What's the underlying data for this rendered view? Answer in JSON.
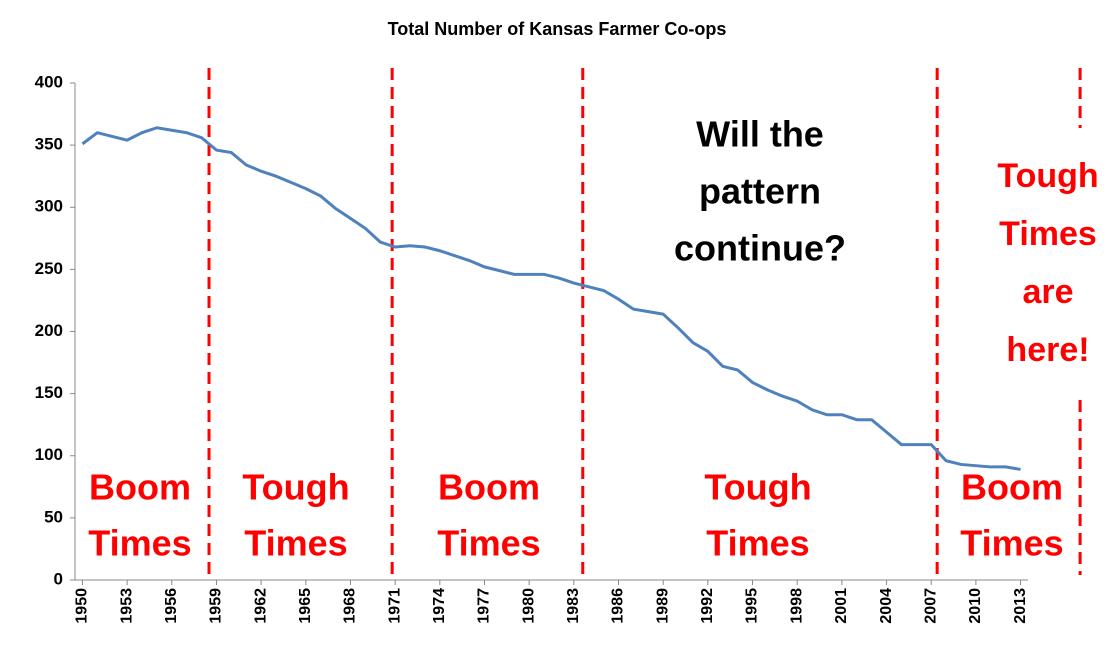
{
  "chart_data": {
    "type": "line",
    "title": "Total Number of Kansas Farmer Co-ops",
    "x": [
      1950,
      1951,
      1952,
      1953,
      1954,
      1955,
      1956,
      1957,
      1958,
      1959,
      1960,
      1961,
      1962,
      1963,
      1964,
      1965,
      1966,
      1967,
      1968,
      1969,
      1970,
      1971,
      1972,
      1973,
      1974,
      1975,
      1976,
      1977,
      1978,
      1979,
      1980,
      1981,
      1982,
      1983,
      1984,
      1985,
      1986,
      1987,
      1988,
      1989,
      1990,
      1991,
      1992,
      1993,
      1994,
      1995,
      1996,
      1997,
      1998,
      1999,
      2000,
      2001,
      2002,
      2003,
      2004,
      2005,
      2006,
      2007,
      2008,
      2009,
      2010,
      2011,
      2012,
      2013
    ],
    "series": [
      {
        "color": "#4f81bd",
        "values": [
          351,
          360,
          357,
          354,
          360,
          364,
          362,
          360,
          356,
          346,
          344,
          334,
          329,
          325,
          320,
          315,
          309,
          299,
          291,
          283,
          272,
          268,
          269,
          268,
          265,
          261,
          257,
          252,
          249,
          246,
          246,
          246,
          243,
          239,
          236,
          233,
          226,
          218,
          216,
          214,
          203,
          191,
          184,
          172,
          169,
          159,
          153,
          148,
          144,
          137,
          133,
          133,
          129,
          129,
          119,
          109,
          109,
          109,
          96,
          93,
          92,
          91,
          91,
          89
        ]
      }
    ],
    "xlim": [
      1949.5,
      2013.5
    ],
    "xticks": [
      1950,
      1953,
      1956,
      1959,
      1962,
      1965,
      1968,
      1971,
      1974,
      1977,
      1980,
      1983,
      1986,
      1989,
      1992,
      1995,
      1998,
      2001,
      2004,
      2007,
      2010,
      2013
    ],
    "ylim": [
      0,
      400
    ],
    "yticks": [
      0,
      50,
      100,
      150,
      200,
      250,
      300,
      350,
      400
    ],
    "dividers": [
      1958.5,
      1970.8,
      1983.6,
      2007.4,
      2017
    ],
    "divider_color": "#ff0000",
    "annotations": [
      {
        "lines": [
          "Boom",
          "Times"
        ],
        "color": "#ff0000"
      },
      {
        "lines": [
          "Tough",
          "Times"
        ],
        "color": "#ff0000"
      },
      {
        "lines": [
          "Boom",
          "Times"
        ],
        "color": "#ff0000"
      },
      {
        "lines": [
          "Tough",
          "Times"
        ],
        "color": "#ff0000"
      },
      {
        "lines": [
          "Boom",
          "Times"
        ],
        "color": "#ff0000"
      },
      {
        "lines": [
          "Will the",
          "pattern",
          "continue?"
        ],
        "color": "#000000"
      },
      {
        "lines": [
          "Tough",
          "Times",
          "are",
          "here!"
        ],
        "color": "#ff0000"
      }
    ]
  }
}
